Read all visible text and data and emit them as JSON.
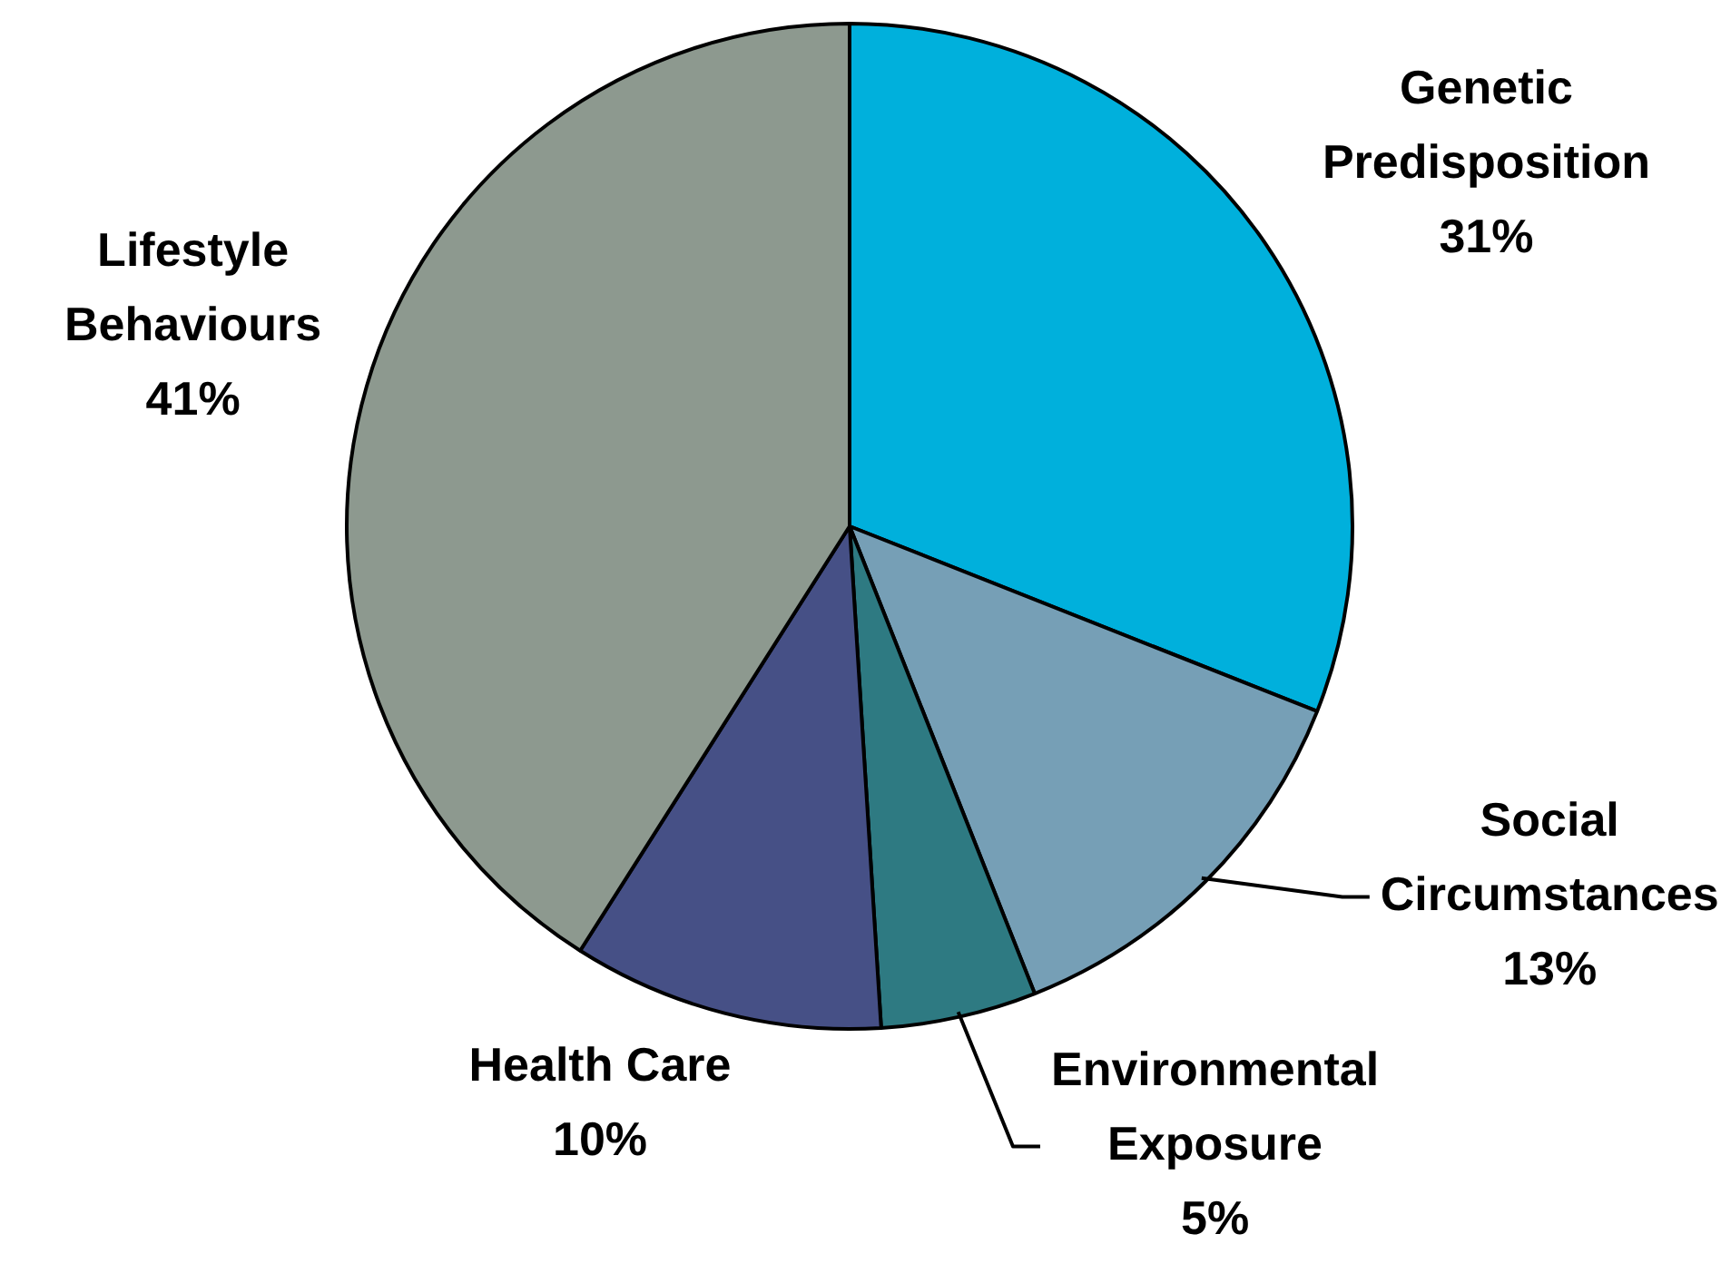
{
  "chart_data": {
    "type": "pie",
    "categories": [
      "Genetic Predisposition",
      "Social Circumstances",
      "Environmental Exposure",
      "Health Care",
      "Lifestyle Behaviours"
    ],
    "values": [
      31,
      13,
      5,
      10,
      41
    ],
    "value_labels": [
      "31%",
      "13%",
      "5%",
      "10%",
      "41%"
    ],
    "colors": [
      "#00b0dc",
      "#769fb6",
      "#2e7a82",
      "#465086",
      "#8d998f"
    ],
    "legend": false
  }
}
